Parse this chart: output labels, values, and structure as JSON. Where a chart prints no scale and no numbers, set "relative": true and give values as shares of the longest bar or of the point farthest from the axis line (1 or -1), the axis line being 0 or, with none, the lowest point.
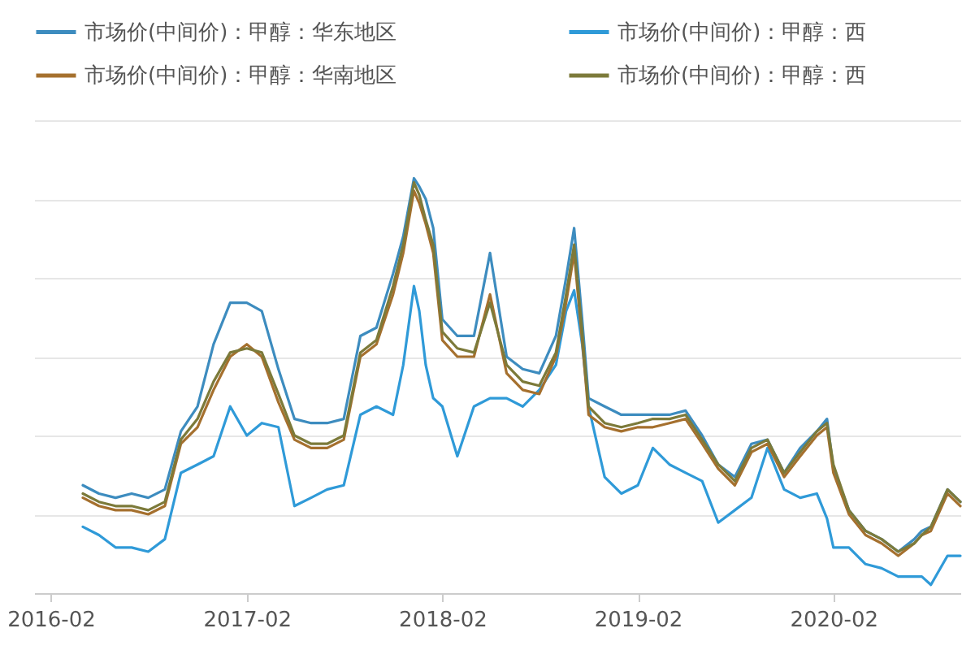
{
  "chart_data": {
    "type": "line",
    "relative": true,
    "x": [
      "2016-04-01",
      "2016-05-01",
      "2016-06-01",
      "2016-07-01",
      "2016-08-01",
      "2016-09-01",
      "2016-10-01",
      "2016-11-01",
      "2016-12-01",
      "2017-01-01",
      "2017-02-01",
      "2017-03-01",
      "2017-04-01",
      "2017-05-01",
      "2017-06-01",
      "2017-07-01",
      "2017-08-01",
      "2017-09-01",
      "2017-10-01",
      "2017-11-01",
      "2017-11-20",
      "2017-12-10",
      "2017-12-20",
      "2018-01-01",
      "2018-01-15",
      "2018-02-01",
      "2018-03-01",
      "2018-04-01",
      "2018-05-01",
      "2018-06-01",
      "2018-07-01",
      "2018-08-01",
      "2018-09-01",
      "2018-09-20",
      "2018-10-05",
      "2018-10-20",
      "2018-11-01",
      "2018-12-01",
      "2019-01-01",
      "2019-02-01",
      "2019-03-01",
      "2019-04-01",
      "2019-05-01",
      "2019-06-01",
      "2019-07-01",
      "2019-08-01",
      "2019-09-01",
      "2019-10-01",
      "2019-11-01",
      "2019-12-01",
      "2020-01-01",
      "2020-01-20",
      "2020-02-01",
      "2020-03-01",
      "2020-04-01",
      "2020-05-01",
      "2020-06-01",
      "2020-07-01",
      "2020-07-15",
      "2020-08-01",
      "2020-09-01",
      "2020-09-25"
    ],
    "series": [
      {
        "name": "市场价(中间价)：甲醇：华东地区",
        "color": "#3d8cbf",
        "values": [
          0.26,
          0.24,
          0.23,
          0.24,
          0.23,
          0.25,
          0.39,
          0.45,
          0.6,
          0.7,
          0.7,
          0.68,
          0.54,
          0.42,
          0.41,
          0.41,
          0.42,
          0.62,
          0.64,
          0.77,
          0.86,
          1.0,
          0.98,
          0.95,
          0.88,
          0.66,
          0.62,
          0.62,
          0.82,
          0.57,
          0.54,
          0.53,
          0.62,
          0.76,
          0.88,
          0.66,
          0.47,
          0.45,
          0.43,
          0.43,
          0.43,
          0.43,
          0.44,
          0.38,
          0.31,
          0.28,
          0.36,
          0.37,
          0.29,
          0.35,
          0.39,
          0.42,
          0.3,
          0.2,
          0.15,
          0.13,
          0.1,
          0.13,
          0.15,
          0.16,
          0.25,
          0.22
        ]
      },
      {
        "name": "市场价(中间价)：甲醇：西",
        "color": "#2f9ad8",
        "values": [
          0.16,
          0.14,
          0.11,
          0.11,
          0.1,
          0.13,
          0.29,
          0.31,
          0.33,
          0.45,
          0.38,
          0.41,
          0.4,
          0.21,
          0.23,
          0.25,
          0.26,
          0.43,
          0.45,
          0.43,
          0.55,
          0.74,
          0.68,
          0.55,
          0.47,
          0.45,
          0.33,
          0.45,
          0.47,
          0.47,
          0.45,
          0.49,
          0.55,
          0.68,
          0.73,
          0.6,
          0.45,
          0.28,
          0.24,
          0.26,
          0.35,
          0.31,
          0.29,
          0.27,
          0.17,
          0.2,
          0.23,
          0.35,
          0.25,
          0.23,
          0.24,
          0.18,
          0.11,
          0.11,
          0.07,
          0.06,
          0.04,
          0.04,
          0.04,
          0.02,
          0.09,
          0.09
        ]
      },
      {
        "name": "市场价(中间价)：甲醇：华南地区",
        "color": "#a5702e",
        "values": [
          0.23,
          0.21,
          0.2,
          0.2,
          0.19,
          0.21,
          0.36,
          0.4,
          0.49,
          0.57,
          0.6,
          0.57,
          0.46,
          0.37,
          0.35,
          0.35,
          0.37,
          0.57,
          0.6,
          0.72,
          0.82,
          0.97,
          0.94,
          0.89,
          0.82,
          0.61,
          0.57,
          0.57,
          0.72,
          0.53,
          0.49,
          0.48,
          0.57,
          0.7,
          0.82,
          0.61,
          0.43,
          0.4,
          0.39,
          0.4,
          0.4,
          0.41,
          0.42,
          0.36,
          0.3,
          0.26,
          0.34,
          0.36,
          0.28,
          0.33,
          0.38,
          0.4,
          0.29,
          0.19,
          0.14,
          0.12,
          0.09,
          0.12,
          0.14,
          0.15,
          0.24,
          0.21
        ]
      },
      {
        "name": "市场价(中间价)：甲醇：西",
        "color": "#7c7a3a",
        "values": [
          0.24,
          0.22,
          0.21,
          0.21,
          0.2,
          0.22,
          0.37,
          0.42,
          0.51,
          0.58,
          0.59,
          0.58,
          0.48,
          0.38,
          0.36,
          0.36,
          0.38,
          0.58,
          0.61,
          0.74,
          0.84,
          0.99,
          0.96,
          0.9,
          0.84,
          0.63,
          0.59,
          0.58,
          0.7,
          0.55,
          0.51,
          0.5,
          0.58,
          0.72,
          0.84,
          0.63,
          0.45,
          0.41,
          0.4,
          0.41,
          0.42,
          0.42,
          0.43,
          0.37,
          0.31,
          0.27,
          0.35,
          0.37,
          0.29,
          0.34,
          0.39,
          0.41,
          0.31,
          0.2,
          0.15,
          0.13,
          0.1,
          0.12,
          0.14,
          0.16,
          0.25,
          0.22
        ]
      }
    ],
    "xlim": [
      "2016-01-01",
      "2020-09-25"
    ],
    "xticks": [
      "2016-02",
      "2017-02",
      "2018-02",
      "2019-02",
      "2020-02"
    ],
    "grid": "y",
    "legend": "top"
  }
}
